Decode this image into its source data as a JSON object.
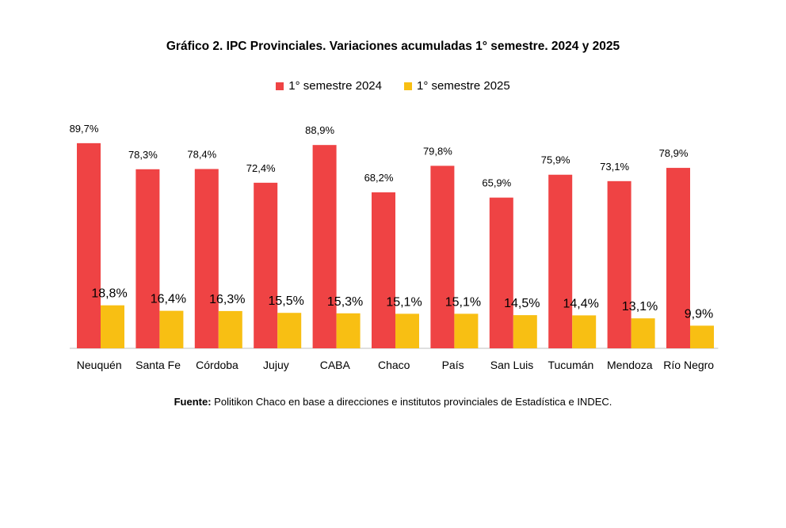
{
  "chart_data": {
    "type": "bar",
    "title": "Gráfico 2. IPC Provinciales. Variaciones acumuladas 1° semestre. 2024 y 2025",
    "categories": [
      "Neuquén",
      "Santa Fe",
      "Córdoba",
      "Jujuy",
      "CABA",
      "Chaco",
      "País",
      "San Luis",
      "Tucumán",
      "Mendoza",
      "Río Negro"
    ],
    "series": [
      {
        "name": "1° semestre 2024",
        "color": "#ef4344",
        "values": [
          89.7,
          78.3,
          78.4,
          72.4,
          88.9,
          68.2,
          79.8,
          65.9,
          75.9,
          73.1,
          78.9
        ],
        "labels": [
          "89,7%",
          "78,3%",
          "78,4%",
          "72,4%",
          "88,9%",
          "68,2%",
          "79,8%",
          "65,9%",
          "75,9%",
          "73,1%",
          "78,9%"
        ]
      },
      {
        "name": "1° semestre 2025",
        "color": "#f8bf13",
        "values": [
          18.8,
          16.4,
          16.3,
          15.5,
          15.3,
          15.1,
          15.1,
          14.5,
          14.4,
          13.1,
          9.9
        ],
        "labels": [
          "18,8%",
          "16,4%",
          "16,3%",
          "15,5%",
          "15,3%",
          "15,1%",
          "15,1%",
          "14,5%",
          "14,4%",
          "13,1%",
          "9,9%"
        ]
      }
    ],
    "ylim": [
      0,
      90
    ],
    "grid": false,
    "legend_position": "top-center"
  },
  "source": {
    "label": "Fuente:",
    "text": " Politikon Chaco en base a direcciones e institutos provinciales de Estadística e INDEC."
  }
}
